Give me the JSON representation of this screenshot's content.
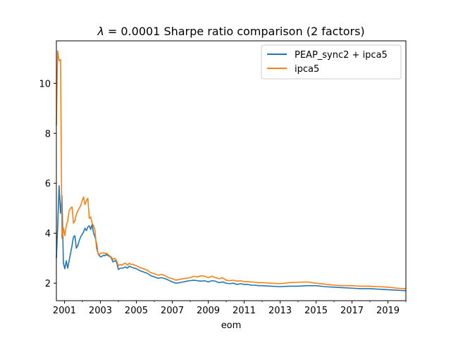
{
  "chart_data": {
    "type": "line",
    "title": "λ = 0.0001   Sharpe ratio comparison (2 factors)",
    "title_lambda": "λ",
    "title_rest": " = 0.0001   Sharpe ratio comparison (2 factors)",
    "xlabel": "eom",
    "ylabel": "",
    "xlim": [
      2000.55,
      2020.0
    ],
    "ylim": [
      1.3,
      11.7
    ],
    "x_ticks": [
      2001,
      2003,
      2005,
      2007,
      2009,
      2011,
      2013,
      2015,
      2017,
      2019
    ],
    "x_tick_labels": [
      "2001",
      "2003",
      "2005",
      "2007",
      "2009",
      "2011",
      "2013",
      "2015",
      "2017",
      "2019"
    ],
    "y_ticks": [
      2,
      4,
      6,
      8,
      10
    ],
    "y_tick_labels": [
      "2",
      "4",
      "6",
      "8",
      "10"
    ],
    "grid": false,
    "legend_position": "top-right",
    "colors": {
      "series_1": "#1f77b4",
      "series_2": "#ff7f0e"
    },
    "series": [
      {
        "name": "PEAP_sync2 + ipca5",
        "x": [
          2000.55,
          2000.62,
          2000.7,
          2000.78,
          2000.86,
          2000.94,
          2001.02,
          2001.1,
          2001.18,
          2001.26,
          2001.34,
          2001.42,
          2001.5,
          2001.58,
          2001.66,
          2001.74,
          2001.82,
          2001.9,
          2001.98,
          2002.06,
          2002.14,
          2002.22,
          2002.3,
          2002.38,
          2002.46,
          2002.54,
          2002.62,
          2002.7,
          2002.78,
          2002.86,
          2002.94,
          2003.02,
          2003.1,
          2003.18,
          2003.26,
          2003.34,
          2003.42,
          2003.5,
          2003.6,
          2003.7,
          2003.8,
          2003.9,
          2004.0,
          2004.1,
          2004.2,
          2004.3,
          2004.4,
          2004.5,
          2004.6,
          2004.7,
          2004.8,
          2004.9,
          2005.0,
          2005.2,
          2005.4,
          2005.6,
          2005.8,
          2006.0,
          2006.2,
          2006.4,
          2006.6,
          2006.8,
          2007.0,
          2007.2,
          2007.4,
          2007.6,
          2007.8,
          2008.0,
          2008.2,
          2008.4,
          2008.6,
          2008.8,
          2009.0,
          2009.2,
          2009.4,
          2009.6,
          2009.8,
          2010.0,
          2010.2,
          2010.4,
          2010.6,
          2010.8,
          2011.0,
          2011.2,
          2011.4,
          2011.6,
          2011.8,
          2012.0,
          2012.5,
          2013.0,
          2013.5,
          2014.0,
          2014.5,
          2015.0,
          2015.5,
          2016.0,
          2016.5,
          2017.0,
          2017.5,
          2018.0,
          2018.5,
          2019.0,
          2019.5,
          2020.0
        ],
        "values": [
          3.0,
          4.2,
          5.9,
          4.8,
          5.5,
          2.8,
          2.58,
          2.9,
          2.6,
          2.9,
          3.2,
          3.5,
          3.85,
          3.9,
          3.4,
          3.5,
          3.7,
          3.85,
          3.95,
          4.05,
          4.2,
          4.1,
          4.25,
          4.3,
          4.15,
          4.35,
          4.0,
          3.85,
          3.6,
          3.2,
          3.1,
          3.05,
          3.08,
          3.12,
          3.1,
          3.15,
          3.1,
          3.08,
          3.02,
          2.85,
          2.9,
          2.85,
          2.55,
          2.6,
          2.6,
          2.62,
          2.65,
          2.6,
          2.68,
          2.65,
          2.62,
          2.6,
          2.58,
          2.5,
          2.45,
          2.4,
          2.3,
          2.25,
          2.2,
          2.22,
          2.18,
          2.12,
          2.05,
          2.0,
          2.02,
          2.05,
          2.08,
          2.1,
          2.12,
          2.1,
          2.08,
          2.1,
          2.05,
          2.1,
          2.08,
          2.02,
          2.05,
          2.0,
          1.98,
          2.0,
          1.95,
          1.98,
          1.95,
          1.95,
          1.92,
          1.92,
          1.9,
          1.9,
          1.88,
          1.86,
          1.88,
          1.88,
          1.9,
          1.9,
          1.86,
          1.84,
          1.82,
          1.8,
          1.78,
          1.78,
          1.76,
          1.74,
          1.72,
          1.7
        ]
      },
      {
        "name": "ipca5",
        "x": [
          2000.55,
          2000.62,
          2000.7,
          2000.78,
          2000.86,
          2000.94,
          2001.02,
          2001.1,
          2001.18,
          2001.26,
          2001.34,
          2001.42,
          2001.5,
          2001.58,
          2001.66,
          2001.74,
          2001.82,
          2001.9,
          2001.98,
          2002.06,
          2002.14,
          2002.22,
          2002.3,
          2002.38,
          2002.46,
          2002.54,
          2002.62,
          2002.7,
          2002.78,
          2002.86,
          2002.94,
          2003.02,
          2003.1,
          2003.18,
          2003.26,
          2003.34,
          2003.42,
          2003.5,
          2003.6,
          2003.7,
          2003.8,
          2003.9,
          2004.0,
          2004.1,
          2004.2,
          2004.3,
          2004.4,
          2004.5,
          2004.6,
          2004.7,
          2004.8,
          2004.9,
          2005.0,
          2005.2,
          2005.4,
          2005.6,
          2005.8,
          2006.0,
          2006.2,
          2006.4,
          2006.6,
          2006.8,
          2007.0,
          2007.2,
          2007.4,
          2007.6,
          2007.8,
          2008.0,
          2008.2,
          2008.4,
          2008.6,
          2008.8,
          2009.0,
          2009.2,
          2009.4,
          2009.6,
          2009.8,
          2010.0,
          2010.2,
          2010.4,
          2010.6,
          2010.8,
          2011.0,
          2011.2,
          2011.4,
          2011.6,
          2011.8,
          2012.0,
          2012.5,
          2013.0,
          2013.5,
          2014.0,
          2014.5,
          2015.0,
          2015.5,
          2016.0,
          2016.5,
          2017.0,
          2017.5,
          2018.0,
          2018.5,
          2019.0,
          2019.5,
          2020.0
        ],
        "values": [
          8.3,
          11.3,
          10.9,
          10.95,
          3.8,
          4.2,
          3.9,
          4.3,
          4.5,
          4.9,
          5.0,
          5.05,
          4.4,
          4.5,
          4.75,
          4.9,
          5.0,
          5.1,
          5.3,
          5.45,
          5.15,
          5.3,
          5.4,
          4.6,
          4.65,
          4.4,
          4.3,
          4.1,
          3.4,
          3.2,
          3.15,
          3.2,
          3.2,
          3.22,
          3.18,
          3.2,
          3.15,
          3.1,
          3.05,
          2.95,
          3.0,
          2.9,
          2.7,
          2.75,
          2.72,
          2.78,
          2.8,
          2.72,
          2.8,
          2.75,
          2.76,
          2.72,
          2.7,
          2.62,
          2.58,
          2.52,
          2.42,
          2.38,
          2.32,
          2.35,
          2.3,
          2.22,
          2.18,
          2.12,
          2.15,
          2.18,
          2.2,
          2.22,
          2.28,
          2.25,
          2.3,
          2.28,
          2.22,
          2.28,
          2.22,
          2.18,
          2.22,
          2.12,
          2.1,
          2.12,
          2.08,
          2.1,
          2.06,
          2.06,
          2.05,
          2.04,
          2.02,
          2.02,
          2.0,
          1.98,
          2.02,
          2.04,
          2.05,
          2.0,
          1.96,
          1.92,
          1.9,
          1.9,
          1.88,
          1.88,
          1.86,
          1.84,
          1.8,
          1.78
        ]
      }
    ]
  }
}
